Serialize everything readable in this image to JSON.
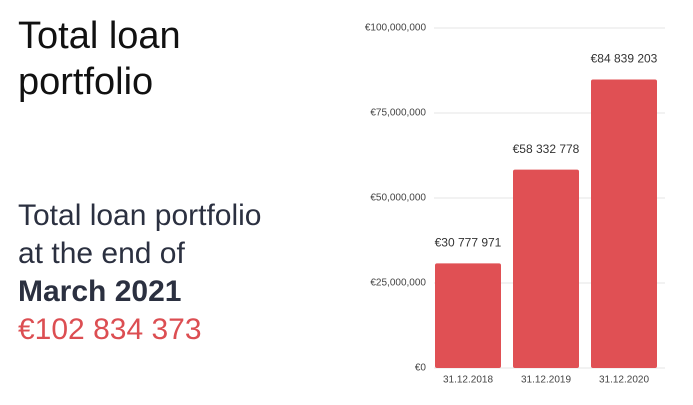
{
  "heading": [
    "Total loan",
    "portfolio"
  ],
  "summary": {
    "lines": [
      "Total loan portfolio",
      "at the end of"
    ],
    "period": "March 2021",
    "amount": "€102 834 373"
  },
  "chart_data": {
    "type": "bar",
    "categories": [
      "31.12.2018",
      "31.12.2019",
      "31.12.2020"
    ],
    "values": [
      30777971,
      58332778,
      84839203
    ],
    "value_labels": [
      "€30 777 971",
      "€58 332 778",
      "€84 839 203"
    ],
    "color": "#e05054",
    "ylim": [
      0,
      100000000
    ],
    "yticks": [
      {
        "value": 0,
        "label": "€0"
      },
      {
        "value": 25000000,
        "label": "€25,000,000"
      },
      {
        "value": 50000000,
        "label": "€50,000,000"
      },
      {
        "value": 75000000,
        "label": "€75,000,000"
      },
      {
        "value": 100000000,
        "label": "€100,000,000"
      }
    ],
    "grid": true
  }
}
